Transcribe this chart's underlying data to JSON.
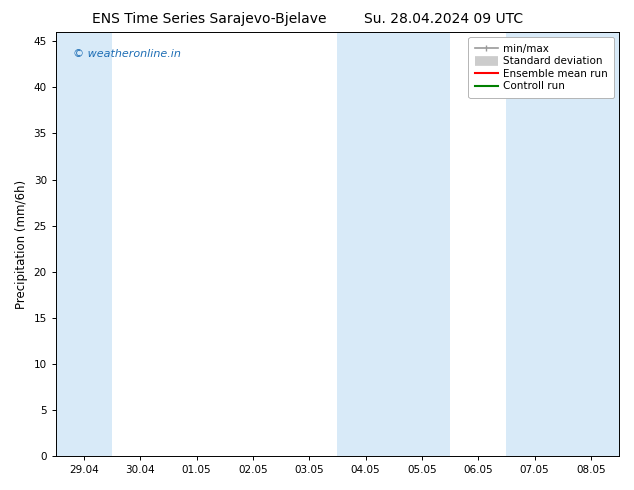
{
  "title_left": "ENS Time Series Sarajevo-Bjelave",
  "title_right": "Su. 28.04.2024 09 UTC",
  "ylabel": "Precipitation (mm/6h)",
  "xlabel_ticks": [
    "29.04",
    "30.04",
    "01.05",
    "02.05",
    "03.05",
    "04.05",
    "05.05",
    "06.05",
    "07.05",
    "08.05"
  ],
  "xlim": [
    -0.5,
    9.5
  ],
  "ylim": [
    0,
    46
  ],
  "yticks": [
    0,
    5,
    10,
    15,
    20,
    25,
    30,
    35,
    40,
    45
  ],
  "background_color": "#ffffff",
  "plot_bg_color": "#ffffff",
  "shaded_bands": [
    {
      "x_start": -0.5,
      "x_end": 0.5,
      "color": "#d8eaf8"
    },
    {
      "x_start": 4.5,
      "x_end": 5.5,
      "color": "#d8eaf8"
    },
    {
      "x_start": 5.5,
      "x_end": 6.5,
      "color": "#d8eaf8"
    },
    {
      "x_start": 7.5,
      "x_end": 8.5,
      "color": "#d8eaf8"
    },
    {
      "x_start": 8.5,
      "x_end": 9.5,
      "color": "#d8eaf8"
    }
  ],
  "watermark_text": "© weatheronline.in",
  "watermark_color": "#1e6eb5",
  "legend_items": [
    {
      "label": "min/max",
      "color": "#999999",
      "lw": 1.2
    },
    {
      "label": "Standard deviation",
      "color": "#cccccc",
      "lw": 7
    },
    {
      "label": "Ensemble mean run",
      "color": "#ff0000",
      "lw": 1.5
    },
    {
      "label": "Controll run",
      "color": "#008000",
      "lw": 1.5
    }
  ],
  "title_fontsize": 10,
  "tick_label_fontsize": 7.5,
  "ylabel_fontsize": 8.5,
  "legend_fontsize": 7.5,
  "watermark_fontsize": 8
}
